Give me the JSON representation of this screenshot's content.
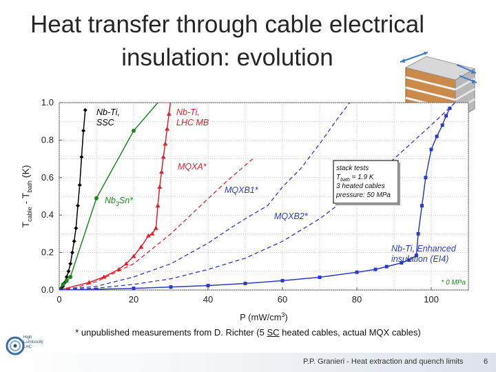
{
  "slide": {
    "title_line1": "Heat transfer through cable electrical",
    "title_line2": "insulation: evolution",
    "footnote_pre": "* unpublished measurements from D. Richter (5 ",
    "footnote_sc": "SC",
    "footnote_post": " heated cables, actual MQX cables)",
    "footer_text": "P.P. Granieri - Heat extraction and quench limits",
    "page_number": "6",
    "logo_text": [
      "High",
      "Luminosity",
      "LHC"
    ]
  },
  "chart_data": {
    "type": "line",
    "xlabel": "P (mW/cm³)",
    "ylabel": "T_cable - T_bath (K)",
    "xlim": [
      0,
      110
    ],
    "ylim": [
      0,
      1.0
    ],
    "x_ticks": [
      "0",
      "20",
      "40",
      "60",
      "80",
      "100"
    ],
    "y_ticks": [
      "0.0",
      "0.2",
      "0.4",
      "0.6",
      "0.8",
      "1.0"
    ],
    "grid": true,
    "legend_box": {
      "lines": [
        "stack tests",
        "T bath = 1.9 K",
        "3 heated cables",
        "pressure: 50 MPa"
      ],
      "placement": "top-right"
    },
    "annotations": [
      "* 0 MPa"
    ],
    "series": [
      {
        "name": "Nb-Ti, SSC",
        "label_lines": [
          "Nb-Ti,",
          "SSC"
        ],
        "color": "#000000",
        "style": "solid",
        "marker": "diamond",
        "x": [
          0,
          0.5,
          1,
          1.5,
          2,
          2.5,
          3,
          3.5,
          4,
          4.5,
          5,
          5.5,
          6,
          6.5,
          7
        ],
        "y": [
          0,
          0.01,
          0.02,
          0.04,
          0.07,
          0.1,
          0.14,
          0.2,
          0.26,
          0.33,
          0.45,
          0.56,
          0.71,
          0.85,
          0.96
        ]
      },
      {
        "name": "Nb3Sn*",
        "label_lines": [
          "Nb3Sn*"
        ],
        "color": "#1a8a1a",
        "style": "solid",
        "marker": "circle",
        "x": [
          0,
          1,
          2,
          3,
          10,
          20,
          30
        ],
        "y": [
          0,
          0.03,
          0.05,
          0.07,
          0.49,
          0.85,
          1.08
        ]
      },
      {
        "name": "Nb-Ti, LHC MB",
        "label_lines": [
          "Nb-Ti,",
          "LHC MB"
        ],
        "color": "#e0202a",
        "style": "solid",
        "marker": "triangle",
        "x": [
          0,
          8,
          12,
          16,
          18,
          20,
          22,
          24,
          25,
          26,
          26.5,
          27,
          27.5,
          28,
          28.5,
          29,
          29.5,
          30
        ],
        "y": [
          0,
          0.04,
          0.07,
          0.11,
          0.14,
          0.18,
          0.23,
          0.29,
          0.3,
          0.33,
          0.45,
          0.55,
          0.63,
          0.71,
          0.78,
          0.86,
          0.94,
          1.02
        ]
      },
      {
        "name": "MQXA*",
        "label_lines": [
          "MQXA*"
        ],
        "color": "#e0202a",
        "style": "dashed",
        "marker": "none",
        "x": [
          0,
          5,
          10,
          20,
          30,
          38,
          45,
          52
        ],
        "y": [
          0,
          0.015,
          0.045,
          0.14,
          0.3,
          0.45,
          0.58,
          0.7
        ]
      },
      {
        "name": "MQXB1*",
        "label_lines": [
          "MQXB1*"
        ],
        "color": "#2a3ac8",
        "style": "dashed",
        "marker": "none",
        "x": [
          0,
          10,
          20,
          30,
          40,
          46,
          50,
          56,
          60,
          65,
          70,
          75,
          80
        ],
        "y": [
          0,
          0.02,
          0.07,
          0.14,
          0.25,
          0.33,
          0.38,
          0.45,
          0.55,
          0.65,
          0.78,
          0.92,
          1.05
        ]
      },
      {
        "name": "MQXB2*",
        "label_lines": [
          "MQXB2*"
        ],
        "color": "#2a3ac8",
        "style": "dashed",
        "marker": "none",
        "x": [
          0,
          10,
          20,
          30,
          40,
          50,
          60,
          70,
          80,
          90,
          100,
          108
        ],
        "y": [
          0,
          0.01,
          0.03,
          0.06,
          0.11,
          0.17,
          0.26,
          0.38,
          0.53,
          0.7,
          0.88,
          1.03
        ]
      },
      {
        "name": "Nb-Ti, Enhanced insulation (EI4)",
        "label_lines": [
          "Nb-Ti, Enhanced",
          "insulation (EI4)"
        ],
        "color": "#2a3ac8",
        "style": "solid",
        "marker": "square",
        "x": [
          0,
          10,
          20,
          30,
          40,
          50,
          60,
          70,
          80,
          85,
          88,
          92,
          94,
          96,
          96.5,
          97.5,
          98.5,
          100,
          101.5,
          103,
          104,
          105
        ],
        "y": [
          0,
          0.004,
          0.009,
          0.016,
          0.024,
          0.035,
          0.05,
          0.068,
          0.095,
          0.11,
          0.125,
          0.145,
          0.16,
          0.185,
          0.3,
          0.45,
          0.6,
          0.75,
          0.82,
          0.88,
          0.93,
          0.97
        ]
      }
    ]
  }
}
